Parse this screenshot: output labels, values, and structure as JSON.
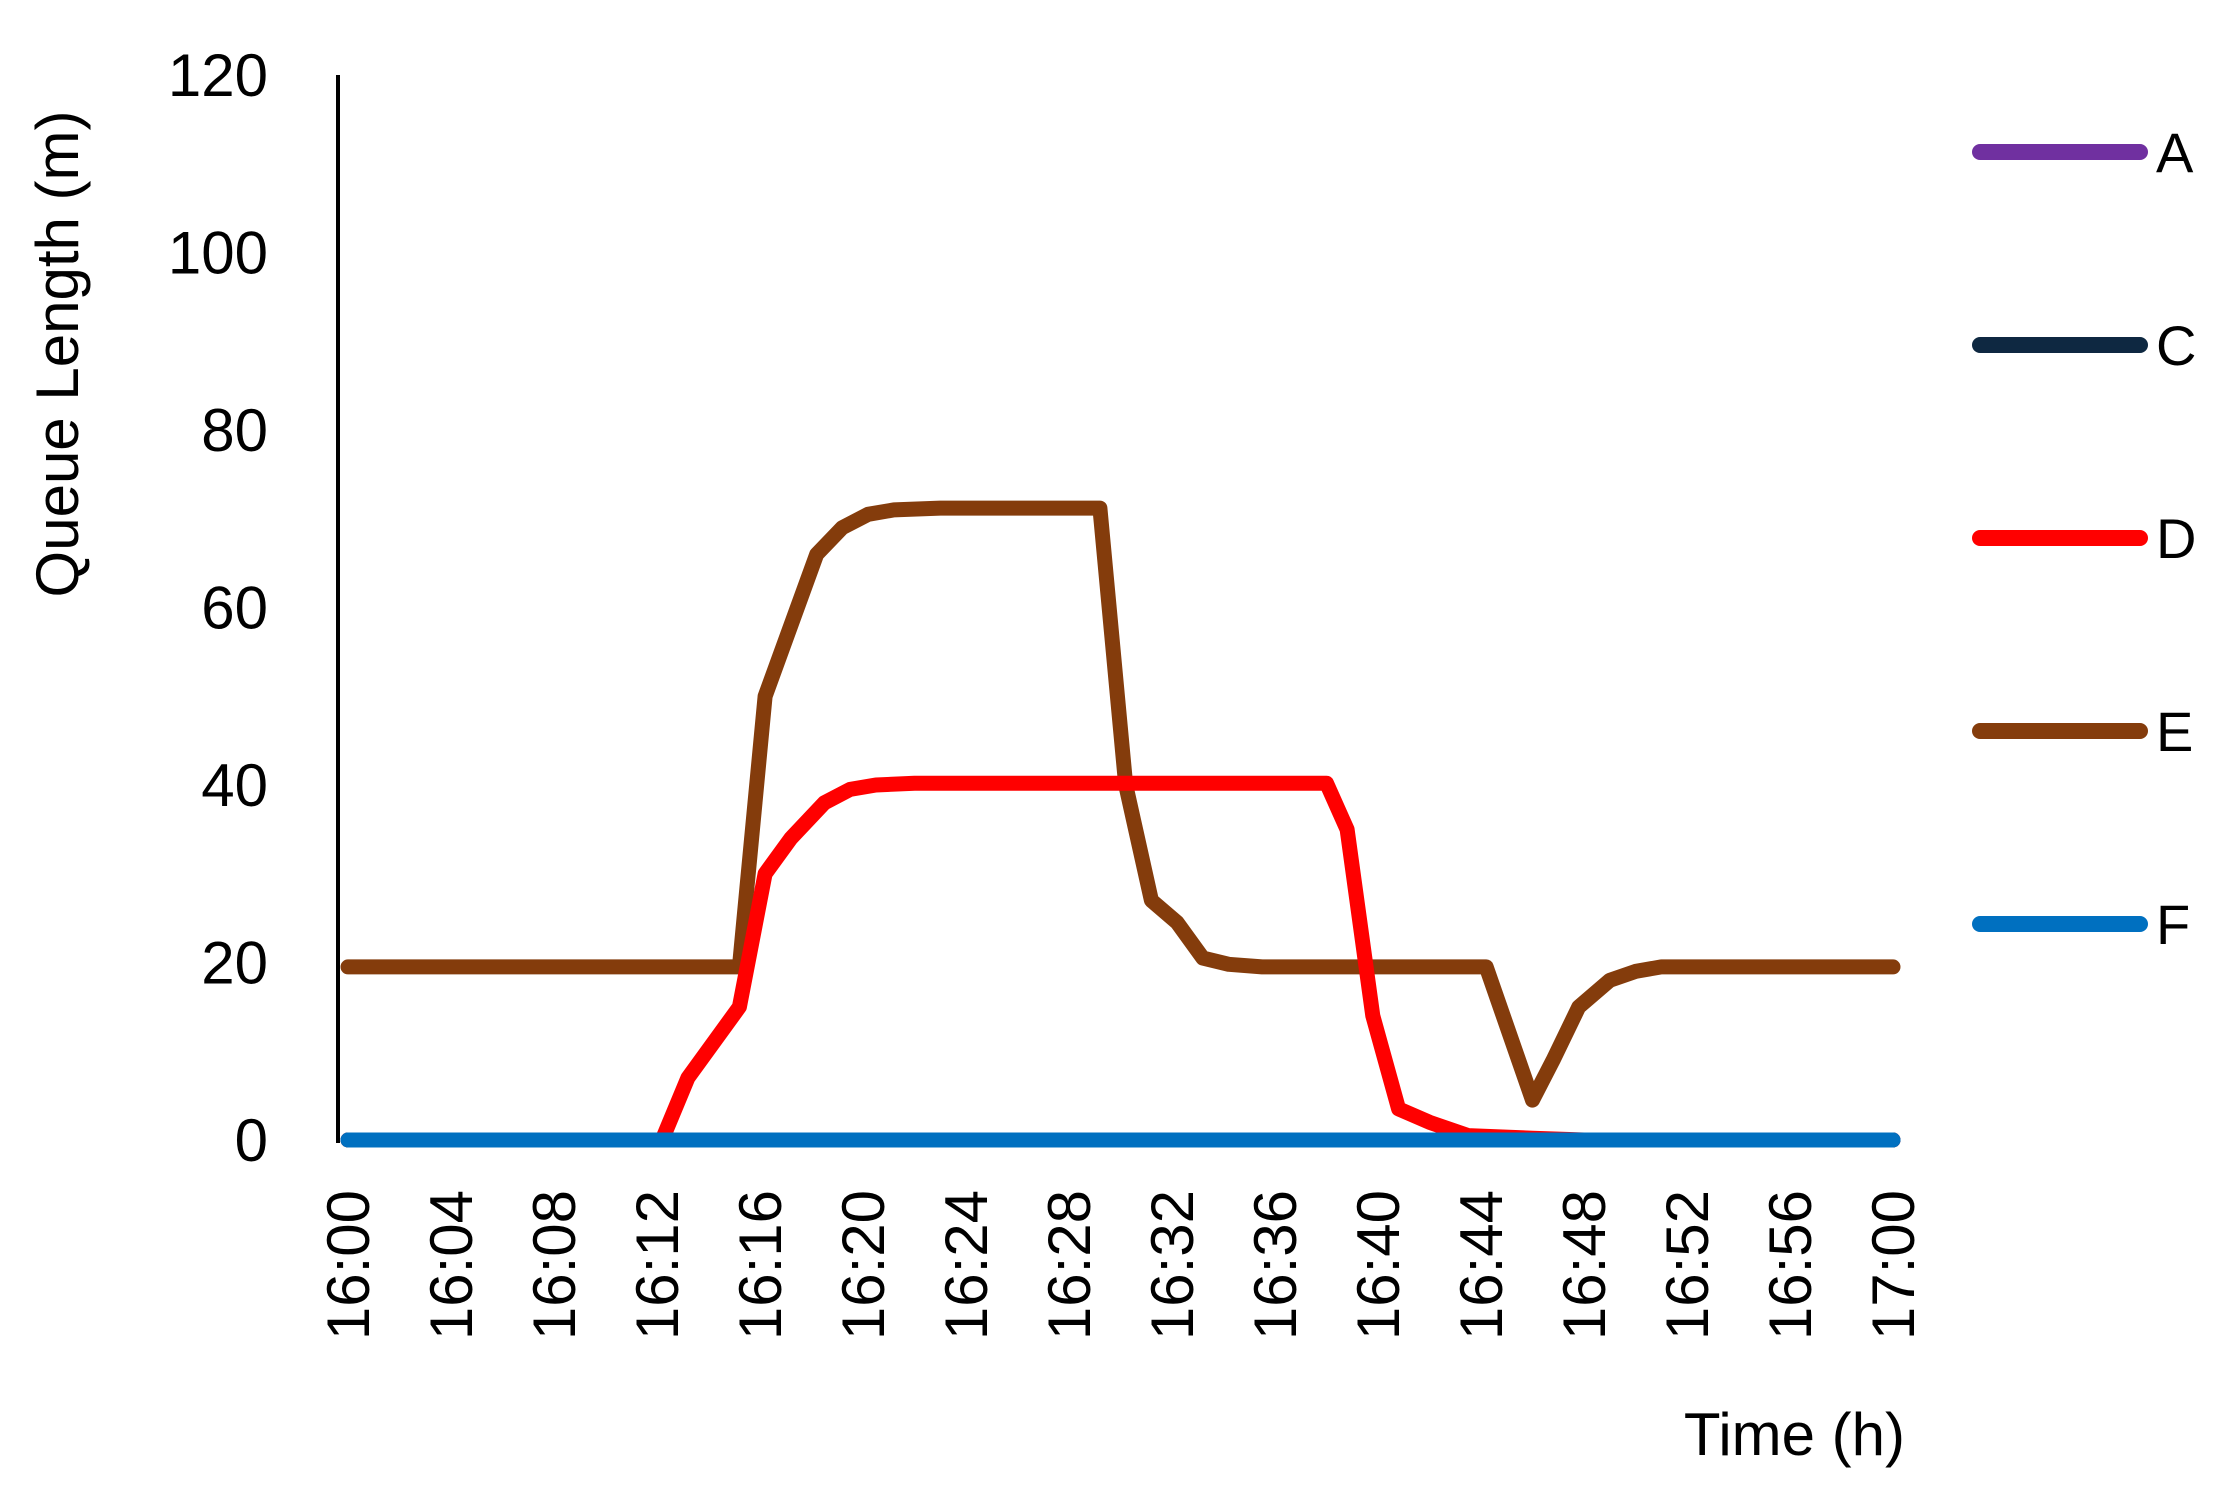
{
  "chart_data": {
    "type": "line",
    "title": "",
    "xlabel": "Time (h)",
    "ylabel": "Queue Length (m)",
    "ylim": [
      0,
      120
    ],
    "yticks": [
      0,
      20,
      40,
      60,
      80,
      100,
      120
    ],
    "x_tick_labels": [
      "16:00",
      "16:04",
      "16:08",
      "16:12",
      "16:16",
      "16:20",
      "16:24",
      "16:28",
      "16:32",
      "16:36",
      "16:40",
      "16:44",
      "16:48",
      "16:52",
      "16:56",
      "17:00"
    ],
    "xlim_minutes": [
      0,
      60
    ],
    "grid": false,
    "legend_position": "right",
    "series": [
      {
        "name": "A",
        "color": "#7030A0",
        "points": [
          [
            0,
            0
          ],
          [
            60,
            0
          ]
        ]
      },
      {
        "name": "C",
        "color": "#0E2841",
        "points": [
          [
            0,
            0
          ],
          [
            60,
            0
          ]
        ]
      },
      {
        "name": "D",
        "color": "#FF0000",
        "points": [
          [
            0,
            0
          ],
          [
            12,
            0
          ],
          [
            12.2,
            0
          ],
          [
            13.2,
            7
          ],
          [
            15.2,
            15
          ],
          [
            16.2,
            30
          ],
          [
            17.2,
            34
          ],
          [
            18.5,
            38
          ],
          [
            19.5,
            39.5
          ],
          [
            20.5,
            40
          ],
          [
            22,
            40.2
          ],
          [
            30,
            40.2
          ],
          [
            36,
            40.2
          ],
          [
            38,
            40.2
          ],
          [
            38.8,
            35
          ],
          [
            39.8,
            14
          ],
          [
            40.8,
            3.5
          ],
          [
            42,
            2
          ],
          [
            43.5,
            0.5
          ],
          [
            46,
            0.2
          ],
          [
            48,
            0
          ],
          [
            60,
            0
          ]
        ]
      },
      {
        "name": "E",
        "color": "#843C0C",
        "points": [
          [
            0,
            19.5
          ],
          [
            15.2,
            19.5
          ],
          [
            16.2,
            50
          ],
          [
            17.2,
            58
          ],
          [
            18.2,
            66
          ],
          [
            19.2,
            69
          ],
          [
            20.2,
            70.5
          ],
          [
            21.2,
            71
          ],
          [
            23,
            71.2
          ],
          [
            29.2,
            71.2
          ],
          [
            30.2,
            40
          ],
          [
            31.2,
            27
          ],
          [
            32.2,
            24.5
          ],
          [
            33.2,
            20.5
          ],
          [
            34.2,
            19.8
          ],
          [
            35.5,
            19.5
          ],
          [
            38,
            19.5
          ],
          [
            44.2,
            19.5
          ],
          [
            46,
            4.5
          ],
          [
            46.8,
            9
          ],
          [
            47.8,
            15
          ],
          [
            49,
            18
          ],
          [
            50,
            19
          ],
          [
            51,
            19.5
          ],
          [
            53,
            19.5
          ],
          [
            60,
            19.5
          ]
        ]
      },
      {
        "name": "F",
        "color": "#0070C0",
        "points": [
          [
            0,
            0
          ],
          [
            60,
            0
          ]
        ]
      }
    ]
  }
}
